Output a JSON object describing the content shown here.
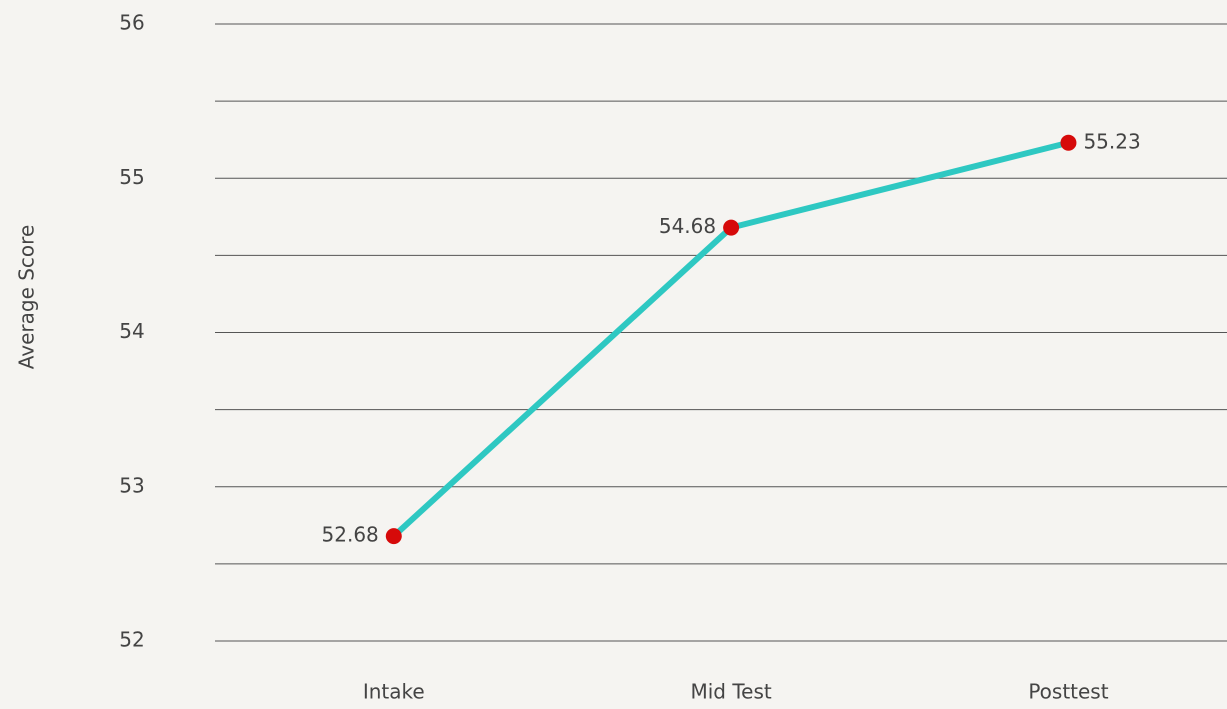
{
  "chart_data": {
    "type": "line",
    "ylabel": "Average Score",
    "categories": [
      "Intake",
      "Mid Test",
      "Posttest"
    ],
    "series": [
      {
        "name": "Average Score",
        "color": "#2ec8c2",
        "marker_color": "#d60a0a",
        "values": [
          52.68,
          54.68,
          55.23
        ]
      }
    ],
    "ylim": [
      52,
      56
    ],
    "yticks": [
      52,
      53,
      54,
      55,
      56
    ],
    "minor_yticks": [
      52.5,
      53.5,
      54.5,
      55.5
    ],
    "grid": true,
    "legend": false
  }
}
